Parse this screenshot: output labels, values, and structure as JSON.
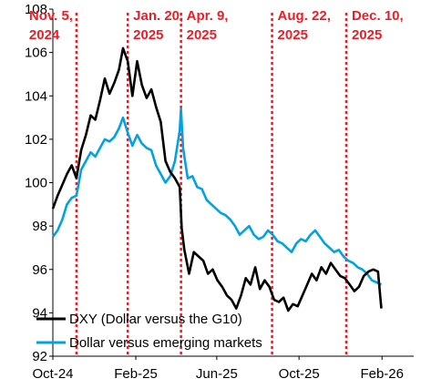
{
  "chart_data": {
    "type": "line",
    "title": "",
    "xlabel": "",
    "ylabel": "",
    "ylim": [
      92,
      108
    ],
    "y_ticks": [
      92,
      94,
      96,
      98,
      100,
      102,
      104,
      106,
      108
    ],
    "x_tick_labels": [
      "Oct-24",
      "Feb-25",
      "Jun-25",
      "Oct-25",
      "Feb-26"
    ],
    "x_tick_dates": [
      "2024-10-01",
      "2025-02-01",
      "2025-06-01",
      "2025-10-01",
      "2026-02-01"
    ],
    "xlim": [
      "2024-10-01",
      "2026-03-20"
    ],
    "grid": false,
    "legend_position": "bottom-left",
    "events": [
      {
        "date": "2024-11-05",
        "label_line1": "Nov. 5,",
        "label_line2": "2024"
      },
      {
        "date": "2025-01-20",
        "label_line1": "Jan. 20,",
        "label_line2": "2025"
      },
      {
        "date": "2025-04-09",
        "label_line1": "Apr. 9,",
        "label_line2": "2025"
      },
      {
        "date": "2025-08-22",
        "label_line1": "Aug. 22,",
        "label_line2": "2025"
      },
      {
        "date": "2025-12-10",
        "label_line1": "Dec. 10,",
        "label_line2": "2025"
      }
    ],
    "series": [
      {
        "name": "DXY (Dollar versus the G10)",
        "color": "#000000",
        "points": [
          [
            "2024-10-01",
            98.8
          ],
          [
            "2024-10-08",
            99.4
          ],
          [
            "2024-10-15",
            99.9
          ],
          [
            "2024-10-22",
            100.4
          ],
          [
            "2024-10-29",
            100.8
          ],
          [
            "2024-11-05",
            100.2
          ],
          [
            "2024-11-12",
            101.5
          ],
          [
            "2024-11-19",
            102.2
          ],
          [
            "2024-11-26",
            103.1
          ],
          [
            "2024-12-03",
            102.9
          ],
          [
            "2024-12-10",
            103.8
          ],
          [
            "2024-12-17",
            104.8
          ],
          [
            "2024-12-24",
            104.1
          ],
          [
            "2024-12-31",
            104.6
          ],
          [
            "2025-01-07",
            105.2
          ],
          [
            "2025-01-13",
            106.2
          ],
          [
            "2025-01-20",
            105.6
          ],
          [
            "2025-01-27",
            104.0
          ],
          [
            "2025-02-03",
            105.6
          ],
          [
            "2025-02-10",
            104.5
          ],
          [
            "2025-02-17",
            103.9
          ],
          [
            "2025-02-24",
            104.3
          ],
          [
            "2025-03-03",
            103.5
          ],
          [
            "2025-03-10",
            102.8
          ],
          [
            "2025-03-17",
            101.0
          ],
          [
            "2025-03-24",
            100.5
          ],
          [
            "2025-03-31",
            100.2
          ],
          [
            "2025-04-07",
            99.8
          ],
          [
            "2025-04-10",
            97.9
          ],
          [
            "2025-04-14",
            96.9
          ],
          [
            "2025-04-21",
            95.8
          ],
          [
            "2025-04-28",
            96.8
          ],
          [
            "2025-05-05",
            96.6
          ],
          [
            "2025-05-12",
            96.4
          ],
          [
            "2025-05-19",
            95.8
          ],
          [
            "2025-05-26",
            96.0
          ],
          [
            "2025-06-02",
            95.5
          ],
          [
            "2025-06-09",
            95.2
          ],
          [
            "2025-06-16",
            94.8
          ],
          [
            "2025-06-23",
            94.6
          ],
          [
            "2025-06-30",
            94.2
          ],
          [
            "2025-07-07",
            94.8
          ],
          [
            "2025-07-14",
            95.6
          ],
          [
            "2025-07-21",
            95.3
          ],
          [
            "2025-07-28",
            96.1
          ],
          [
            "2025-08-04",
            95.1
          ],
          [
            "2025-08-11",
            95.5
          ],
          [
            "2025-08-18",
            95.2
          ],
          [
            "2025-08-25",
            94.6
          ],
          [
            "2025-09-01",
            94.5
          ],
          [
            "2025-09-08",
            94.7
          ],
          [
            "2025-09-15",
            94.1
          ],
          [
            "2025-09-22",
            94.4
          ],
          [
            "2025-09-29",
            94.3
          ],
          [
            "2025-10-06",
            94.8
          ],
          [
            "2025-10-13",
            95.3
          ],
          [
            "2025-10-20",
            95.8
          ],
          [
            "2025-10-27",
            95.5
          ],
          [
            "2025-11-03",
            96.1
          ],
          [
            "2025-11-10",
            95.8
          ],
          [
            "2025-11-17",
            96.3
          ],
          [
            "2025-11-24",
            96.0
          ],
          [
            "2025-12-01",
            95.7
          ],
          [
            "2025-12-08",
            95.6
          ],
          [
            "2025-12-15",
            95.3
          ],
          [
            "2025-12-22",
            95.0
          ],
          [
            "2025-12-29",
            95.2
          ],
          [
            "2026-01-05",
            95.7
          ],
          [
            "2026-01-12",
            95.9
          ],
          [
            "2026-01-19",
            96.0
          ],
          [
            "2026-01-26",
            95.9
          ],
          [
            "2026-01-31",
            94.2
          ]
        ]
      },
      {
        "name": "Dollar versus emerging markets",
        "color": "#00a3e0",
        "points": [
          [
            "2024-10-01",
            97.5
          ],
          [
            "2024-10-08",
            97.8
          ],
          [
            "2024-10-15",
            98.3
          ],
          [
            "2024-10-22",
            99.0
          ],
          [
            "2024-10-29",
            99.3
          ],
          [
            "2024-11-05",
            99.4
          ],
          [
            "2024-11-12",
            100.6
          ],
          [
            "2024-11-19",
            101.0
          ],
          [
            "2024-11-26",
            101.4
          ],
          [
            "2024-12-03",
            101.2
          ],
          [
            "2024-12-10",
            101.6
          ],
          [
            "2024-12-17",
            102.0
          ],
          [
            "2024-12-24",
            101.9
          ],
          [
            "2024-12-31",
            102.1
          ],
          [
            "2025-01-07",
            102.5
          ],
          [
            "2025-01-13",
            103.0
          ],
          [
            "2025-01-20",
            102.3
          ],
          [
            "2025-01-27",
            101.7
          ],
          [
            "2025-02-03",
            102.2
          ],
          [
            "2025-02-10",
            101.8
          ],
          [
            "2025-02-17",
            101.6
          ],
          [
            "2025-02-24",
            101.5
          ],
          [
            "2025-03-03",
            100.8
          ],
          [
            "2025-03-10",
            100.4
          ],
          [
            "2025-03-17",
            100.0
          ],
          [
            "2025-03-24",
            100.3
          ],
          [
            "2025-03-31",
            101.0
          ],
          [
            "2025-04-07",
            102.4
          ],
          [
            "2025-04-09",
            103.4
          ],
          [
            "2025-04-12",
            101.6
          ],
          [
            "2025-04-19",
            100.2
          ],
          [
            "2025-04-26",
            100.3
          ],
          [
            "2025-05-03",
            99.8
          ],
          [
            "2025-05-10",
            99.7
          ],
          [
            "2025-05-17",
            99.2
          ],
          [
            "2025-05-24",
            99.0
          ],
          [
            "2025-05-31",
            98.8
          ],
          [
            "2025-06-07",
            98.6
          ],
          [
            "2025-06-14",
            98.5
          ],
          [
            "2025-06-21",
            98.3
          ],
          [
            "2025-06-28",
            98.0
          ],
          [
            "2025-07-05",
            97.6
          ],
          [
            "2025-07-12",
            97.8
          ],
          [
            "2025-07-19",
            98.0
          ],
          [
            "2025-07-26",
            97.6
          ],
          [
            "2025-08-02",
            97.4
          ],
          [
            "2025-08-09",
            97.5
          ],
          [
            "2025-08-16",
            97.8
          ],
          [
            "2025-08-23",
            97.6
          ],
          [
            "2025-08-30",
            97.3
          ],
          [
            "2025-09-06",
            97.2
          ],
          [
            "2025-09-13",
            97.0
          ],
          [
            "2025-09-20",
            96.8
          ],
          [
            "2025-09-27",
            97.2
          ],
          [
            "2025-10-04",
            97.4
          ],
          [
            "2025-10-11",
            97.3
          ],
          [
            "2025-10-18",
            97.6
          ],
          [
            "2025-10-25",
            97.8
          ],
          [
            "2025-11-01",
            97.5
          ],
          [
            "2025-11-08",
            97.2
          ],
          [
            "2025-11-15",
            97.0
          ],
          [
            "2025-11-22",
            96.8
          ],
          [
            "2025-11-29",
            96.9
          ],
          [
            "2025-12-06",
            96.6
          ],
          [
            "2025-12-13",
            96.4
          ],
          [
            "2025-12-20",
            96.3
          ],
          [
            "2025-12-27",
            96.1
          ],
          [
            "2026-01-03",
            96.0
          ],
          [
            "2026-01-10",
            95.8
          ],
          [
            "2026-01-17",
            95.5
          ],
          [
            "2026-01-24",
            95.4
          ],
          [
            "2026-01-31",
            95.3
          ]
        ]
      }
    ]
  }
}
